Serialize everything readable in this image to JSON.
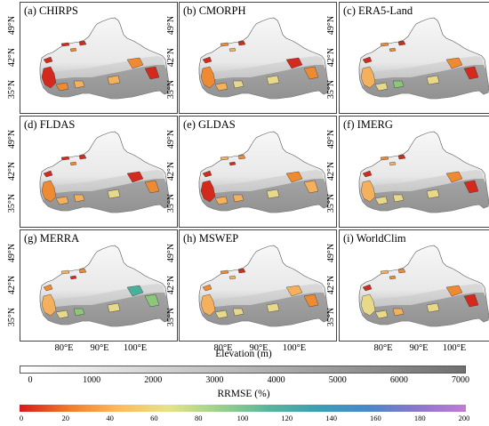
{
  "panels": [
    {
      "title": "(a) CHIRPS"
    },
    {
      "title": "(b) CMORPH"
    },
    {
      "title": "(c) ERA5-Land"
    },
    {
      "title": "(d) FLDAS"
    },
    {
      "title": "(e) GLDAS"
    },
    {
      "title": "(f) IMERG"
    },
    {
      "title": "(g) MERRA"
    },
    {
      "title": "(h) MSWEP"
    },
    {
      "title": "(i) WorldClim"
    }
  ],
  "axes": {
    "lat_labels": [
      "49°N",
      "42°N",
      "35°N"
    ],
    "lon_labels": [
      "80°E",
      "90°E",
      "100°E"
    ]
  },
  "elevation_colorbar": {
    "title": "Elevation (m)",
    "ticks": [
      "0",
      "1000",
      "2000",
      "3000",
      "4000",
      "5000",
      "6000",
      "7000"
    ],
    "colors": [
      "#ffffff",
      "#707070"
    ]
  },
  "rrmse_colorbar": {
    "title": "RRMSE (%)",
    "ticks": [
      "0",
      "20",
      "40",
      "60",
      "80",
      "100",
      "120",
      "140",
      "160",
      "180",
      "200"
    ],
    "colors": [
      "#d7191c",
      "#f07c2a",
      "#fdbb5c",
      "#e6e28a",
      "#9cd28a",
      "#5bb59a",
      "#3a9fb4",
      "#4a88c8",
      "#8a78c8",
      "#c27ad6"
    ]
  },
  "region_colors": {
    "dark_red": "#d42a1e",
    "orange": "#ee8a32",
    "light_orange": "#f4b05c",
    "yellow": "#e8d98a",
    "green": "#8cc678",
    "teal": "#4bb09a"
  }
}
